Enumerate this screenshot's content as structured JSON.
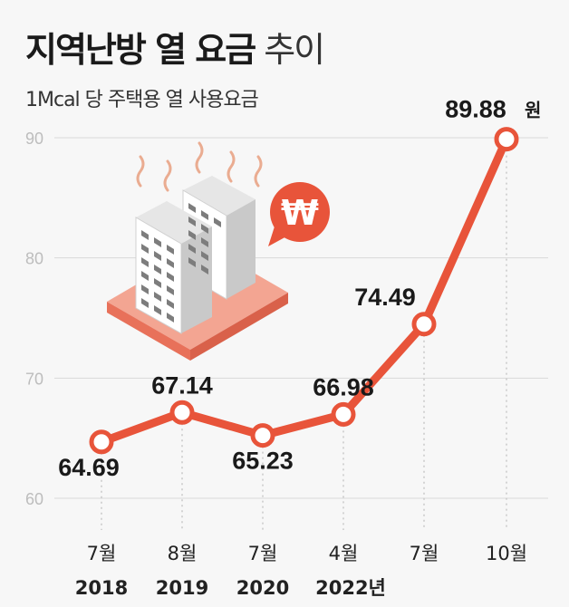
{
  "title_bold": "지역난방 열 요금",
  "title_light": "추이",
  "subtitle": "1Mcal 당 주택용 열 사용요금",
  "colors": {
    "line": "#e8543a",
    "grid": "#d9d9d9",
    "iso_top": "#f3a592",
    "iso_side": "#e8715a"
  },
  "icons": {
    "illustration": "apartment-buildings-illustration",
    "badge": "won-currency-icon"
  },
  "badge_symbol": "₩",
  "chart_data": {
    "type": "line",
    "categories": [
      {
        "month": "7월",
        "year": "2018"
      },
      {
        "month": "8월",
        "year": "2019"
      },
      {
        "month": "7월",
        "year": "2020"
      },
      {
        "month": "4월",
        "year": "2022년"
      },
      {
        "month": "7월",
        "year": ""
      },
      {
        "month": "10월",
        "year": ""
      }
    ],
    "values": [
      64.69,
      67.14,
      65.23,
      66.98,
      74.49,
      89.88
    ],
    "value_labels": [
      "64.69",
      "67.14",
      "65.23",
      "66.98",
      "74.49",
      "89.88"
    ],
    "last_value_unit": "원",
    "yticks": [
      "60",
      "70",
      "80",
      "90"
    ],
    "ylim": [
      60,
      90
    ],
    "grid": true
  }
}
